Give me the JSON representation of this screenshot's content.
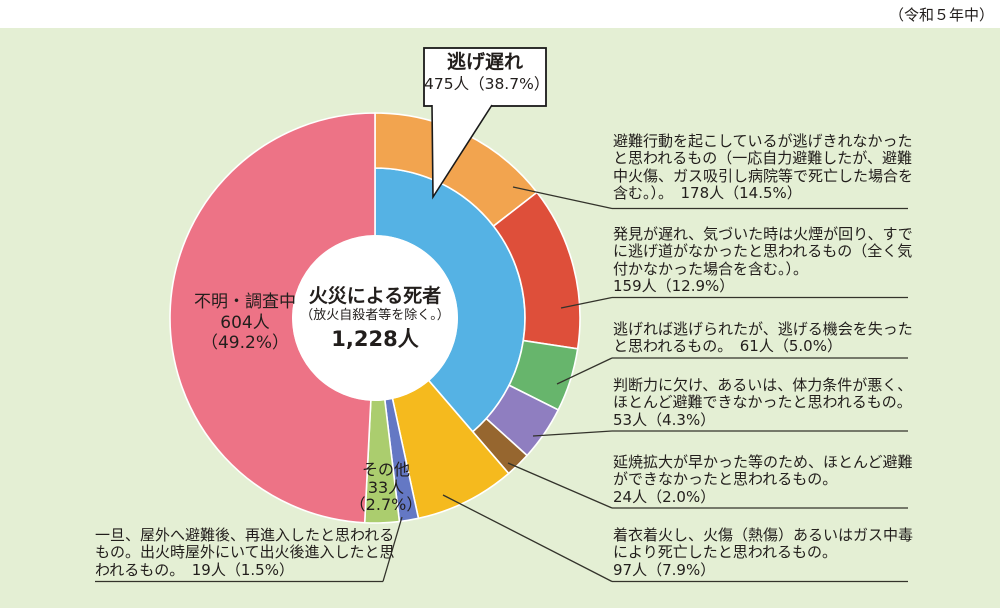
{
  "note": "（令和５年中）",
  "colors": {
    "page_bg": "#FFFFFF",
    "panel_bg": "#E4EFD4",
    "text": "#221E1C",
    "line": "#33332B",
    "callout_border": "#1A1A1A",
    "hole": "#FFFFFF"
  },
  "callout": {
    "title": "逃げ遅れ",
    "value": "475人（38.7%）"
  },
  "center": {
    "line1": "火災による死者",
    "line2": "（放火自殺者等を除く。）",
    "line3": "1,228人"
  },
  "slice_labels": {
    "unknown": "不明・調査中\n604人\n（49.2%）",
    "other": "その他\n33人\n（2.7%）"
  },
  "annotations": {
    "right": [
      {
        "text": "避難行動を起こしているが逃げきれなかったと思われるもの（一応自力避難したが、避難中火傷、ガス吸引し病院等で死亡した場合を含む。）。　178人（14.5%）"
      },
      {
        "text": "発見が遅れ、気づいた時は火煙が回り、すでに逃げ道がなかったと思われるもの（全く気付かなかった場合を含む。）。\n159人（12.9%）"
      },
      {
        "text": "逃げれば逃げられたが、逃げる機会を失ったと思われるもの。　61人（5.0%）"
      },
      {
        "text": "判断力に欠け、あるいは、体力条件が悪く、ほとんど避難できなかったと思われるもの。\n53人（4.3%）"
      },
      {
        "text": "延焼拡大が早かった等のため、ほとんど避難ができなかったと思われるもの。\n24人（2.0%）"
      },
      {
        "text": "着衣着火し、火傷（熱傷）あるいはガス中毒により死亡したと思われるもの。\n97人（7.9%）"
      }
    ],
    "left": {
      "text": "一旦、屋外へ避難後、再進入したと思われるもの。出火時屋外にいて出火後進入したと思われるもの。　19人（1.5%）"
    }
  },
  "chart_data": {
    "type": "pie",
    "title": "火災による死者（放火自殺者等を除く。）",
    "total": 1228,
    "total_label": "1,228人",
    "unit": "人",
    "note": "令和5年中",
    "legend_position": "none",
    "segments": [
      {
        "label": "逃げ遅れ",
        "value": 475,
        "pct": 38.7,
        "color": "#55B2E4",
        "ring": "inner",
        "start": 0,
        "end": 38.7
      },
      {
        "label": "避難行動を起こしているが逃げきれなかったと思われるもの（一応自力避難したが、避難中火傷、ガス吸引し病院等で死亡した場合を含む。）",
        "value": 178,
        "pct": 14.5,
        "color": "#F2A44F",
        "ring": "outer",
        "start": 0,
        "end": 14.5
      },
      {
        "label": "発見が遅れ、気づいた時は火煙が回り、すでに逃げ道がなかったと思われるもの（全く気付かなかった場合を含む。）",
        "value": 159,
        "pct": 12.9,
        "color": "#DE4F3A",
        "ring": "outer",
        "start": 14.5,
        "end": 27.4
      },
      {
        "label": "逃げれば逃げられたが、逃げる機会を失ったと思われるもの",
        "value": 61,
        "pct": 5.0,
        "color": "#67B56C",
        "ring": "outer",
        "start": 27.4,
        "end": 32.4
      },
      {
        "label": "判断力に欠け、あるいは、体力条件が悪く、ほとんど避難できなかったと思われるもの",
        "value": 53,
        "pct": 4.3,
        "color": "#8F7EC0",
        "ring": "outer",
        "start": 32.4,
        "end": 36.7
      },
      {
        "label": "延焼拡大が早かった等のため、ほとんど避難ができなかったと思われるもの",
        "value": 24,
        "pct": 2.0,
        "color": "#96662F",
        "ring": "outer",
        "start": 36.7,
        "end": 38.7
      },
      {
        "label": "着衣着火し、火傷（熱傷）あるいはガス中毒により死亡したと思われるもの",
        "value": 97,
        "pct": 7.9,
        "color": "#F5BA1E",
        "ring": "full",
        "start": 38.7,
        "end": 46.6
      },
      {
        "label": "一旦、屋外へ避難後、再進入したと思われるもの。出火時屋外にいて出火後進入したと思われるもの",
        "value": 19,
        "pct": 1.5,
        "color": "#6478C4",
        "ring": "full",
        "start": 46.6,
        "end": 48.1
      },
      {
        "label": "その他",
        "value": 33,
        "pct": 2.7,
        "color": "#ABCD6E",
        "ring": "full",
        "start": 48.1,
        "end": 50.8
      },
      {
        "label": "不明・調査中",
        "value": 604,
        "pct": 49.2,
        "color": "#ED7386",
        "ring": "full",
        "start": 50.8,
        "end": 100
      }
    ]
  }
}
